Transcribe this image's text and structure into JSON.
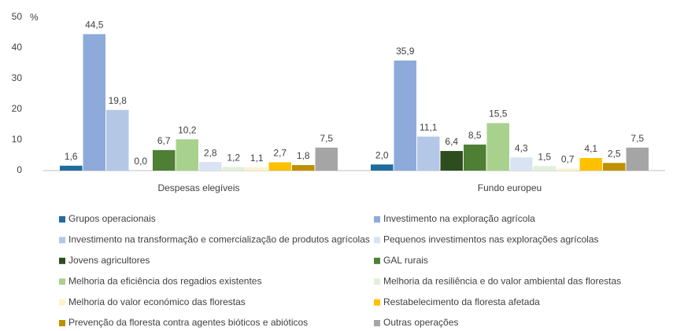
{
  "chart_data": {
    "type": "bar",
    "ylabel": "%",
    "categories": [
      "Despesas elegíveis",
      "Fundo europeu"
    ],
    "ylim": [
      0,
      50
    ],
    "yticks": [
      0,
      10,
      20,
      30,
      40,
      50
    ],
    "series": [
      {
        "name": "Grupos operacionais",
        "color": "#1f6b9e",
        "values": [
          1.6,
          2.0
        ],
        "value_labels": [
          "1,6",
          "2,0"
        ]
      },
      {
        "name": "Investimento na exploração agrícola",
        "color": "#8eaadb",
        "values": [
          44.5,
          35.9
        ],
        "value_labels": [
          "44,5",
          "35,9"
        ]
      },
      {
        "name": "Investimento na transformação e comercialização de produtos agrícolas",
        "color": "#b4c7e7",
        "values": [
          19.8,
          11.1
        ],
        "value_labels": [
          "19,8",
          "11,1"
        ]
      },
      {
        "name": "Jovens agricultores",
        "color": "#2e4d1e",
        "values": [
          0.0,
          6.4
        ],
        "value_labels": [
          "0,0",
          "6,4"
        ]
      },
      {
        "name": "GAL rurais",
        "color": "#4e7f34",
        "values": [
          6.7,
          8.5
        ],
        "value_labels": [
          "6,7",
          "8,5"
        ]
      },
      {
        "name": "Melhoria da eficiência dos regadios existentes",
        "color": "#a9d18e",
        "values": [
          10.2,
          15.5
        ],
        "value_labels": [
          "10,2",
          "15,5"
        ]
      },
      {
        "name": "Pequenos investimentos nas explorações agrícolas",
        "color": "#dae3f3",
        "values": [
          2.8,
          4.3
        ],
        "value_labels": [
          "2,8",
          "4,3"
        ]
      },
      {
        "name": "Melhoria da resiliência e do valor ambiental das florestas",
        "color": "#e2efda",
        "values": [
          1.2,
          1.5
        ],
        "value_labels": [
          "1,2",
          "1,5"
        ]
      },
      {
        "name": "Melhoria do valor económico das florestas",
        "color": "#fff2cc",
        "values": [
          1.1,
          0.7
        ],
        "value_labels": [
          "1,1",
          "0,7"
        ]
      },
      {
        "name": "Restabelecimento da floresta afetada",
        "color": "#ffc000",
        "values": [
          2.7,
          4.1
        ],
        "value_labels": [
          "2,7",
          "4,1"
        ]
      },
      {
        "name": "Prevenção da floresta contra agentes bióticos e abióticos",
        "color": "#bf9000",
        "values": [
          1.8,
          2.5
        ],
        "value_labels": [
          "1,8",
          "2,5"
        ]
      },
      {
        "name": "Outras operações",
        "color": "#a5a5a5",
        "values": [
          7.5,
          7.5
        ],
        "value_labels": [
          "7,5",
          "7,5"
        ]
      }
    ]
  }
}
